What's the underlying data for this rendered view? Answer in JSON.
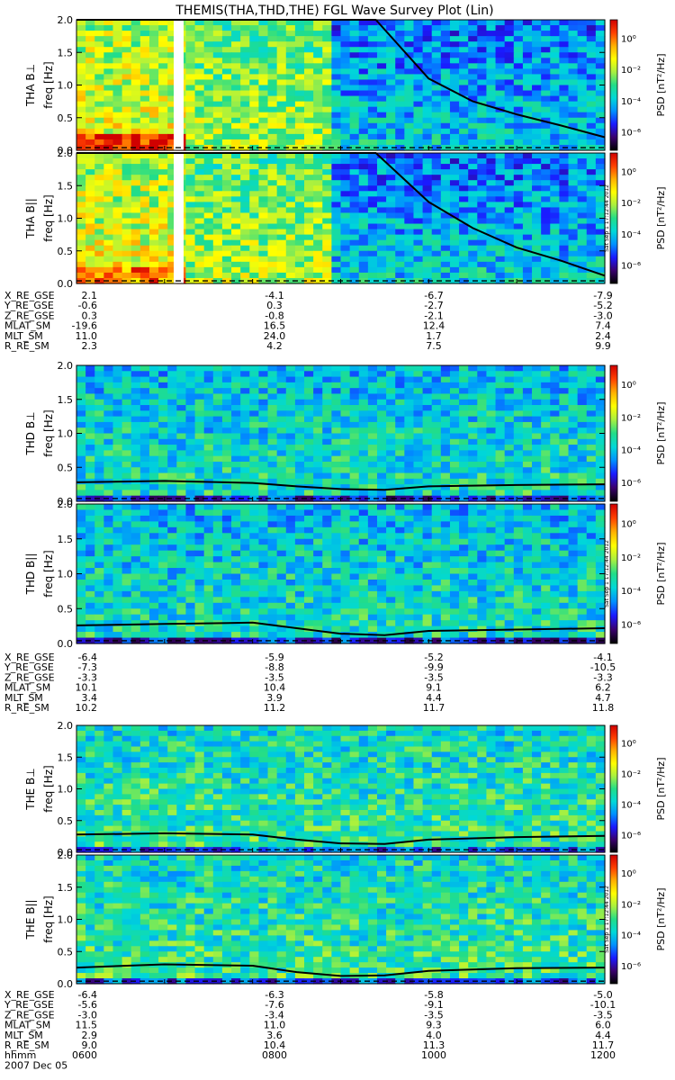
{
  "title": "THEMIS(THA,THD,THE) FGL Wave Survey Plot (Lin)",
  "colors": {
    "background": "#ffffff",
    "axis": "#000000",
    "trace": "#000000",
    "colorbar_stops": [
      "#000000",
      "#3a006e",
      "#1a1aff",
      "#0090ff",
      "#00d8d8",
      "#22dd88",
      "#a8f040",
      "#ffff00",
      "#ffb000",
      "#ff4000",
      "#d00000"
    ]
  },
  "colorbar": {
    "label": "PSD [nT²/Hz]",
    "tick_labels": [
      "10⁰",
      "10⁻²",
      "10⁻⁴",
      "10⁻⁶"
    ]
  },
  "freq_label": "freq [Hz]",
  "y_tick_labels": [
    "0.0",
    "0.5",
    "1.0",
    "1.5",
    "2.0"
  ],
  "stamp": "Sat Sep  1 17:12:44 2012",
  "probes": [
    {
      "id": "THA",
      "panels": [
        {
          "ylabel": "THA B⊥"
        },
        {
          "ylabel": "THA B||"
        }
      ],
      "ephemeris": [
        {
          "label": "X_RE_GSE",
          "values": [
            "2.1",
            "-4.1",
            "-6.7",
            "-7.9"
          ]
        },
        {
          "label": "Y_RE_GSE",
          "values": [
            "-0.6",
            "0.3",
            "-2.7",
            "-5.2"
          ]
        },
        {
          "label": "Z_RE_GSE",
          "values": [
            "0.3",
            "-0.8",
            "-2.1",
            "-3.0"
          ]
        },
        {
          "label": "MLAT_SM",
          "values": [
            "-19.6",
            "16.5",
            "12.4",
            "7.4"
          ]
        },
        {
          "label": "MLT_SM",
          "values": [
            "11.0",
            "24.0",
            "1.7",
            "2.4"
          ]
        },
        {
          "label": "R_RE_SM",
          "values": [
            "2.3",
            "4.2",
            "7.5",
            "9.9"
          ]
        }
      ]
    },
    {
      "id": "THD",
      "panels": [
        {
          "ylabel": "THD B⊥"
        },
        {
          "ylabel": "THD B||"
        }
      ],
      "ephemeris": [
        {
          "label": "X_RE_GSE",
          "values": [
            "-6.4",
            "-5.9",
            "-5.2",
            "-4.1"
          ]
        },
        {
          "label": "Y_RE_GSE",
          "values": [
            "-7.3",
            "-8.8",
            "-9.9",
            "-10.5"
          ]
        },
        {
          "label": "Z_RE_GSE",
          "values": [
            "-3.3",
            "-3.5",
            "-3.5",
            "-3.3"
          ]
        },
        {
          "label": "MLAT_SM",
          "values": [
            "10.1",
            "10.4",
            "9.1",
            "6.2"
          ]
        },
        {
          "label": "MLT_SM",
          "values": [
            "3.4",
            "3.9",
            "4.4",
            "4.7"
          ]
        },
        {
          "label": "R_RE_SM",
          "values": [
            "10.2",
            "11.2",
            "11.7",
            "11.8"
          ]
        }
      ]
    },
    {
      "id": "THE",
      "panels": [
        {
          "ylabel": "THE B⊥"
        },
        {
          "ylabel": "THE B||"
        }
      ],
      "ephemeris": [
        {
          "label": "X_RE_GSE",
          "values": [
            "-6.4",
            "-6.3",
            "-5.8",
            "-5.0"
          ]
        },
        {
          "label": "Y_RE_GSE",
          "values": [
            "-5.6",
            "-7.6",
            "-9.1",
            "-10.1"
          ]
        },
        {
          "label": "Z_RE_GSE",
          "values": [
            "-3.0",
            "-3.4",
            "-3.5",
            "-3.5"
          ]
        },
        {
          "label": "MLAT_SM",
          "values": [
            "11.5",
            "11.0",
            "9.3",
            "6.0"
          ]
        },
        {
          "label": "MLT_SM",
          "values": [
            "2.9",
            "3.6",
            "4.0",
            "4.4"
          ]
        },
        {
          "label": "R_RE_SM",
          "values": [
            "9.0",
            "10.4",
            "11.3",
            "11.7"
          ]
        }
      ]
    }
  ],
  "time_axis": {
    "label": "hhmm",
    "values": [
      "0600",
      "0800",
      "1000",
      "1200"
    ],
    "date": "2007 Dec 05"
  },
  "chart_data": {
    "type": "heatmap",
    "title": "THEMIS(THA,THD,THE) FGL Wave Survey Plot (Lin)",
    "ylabel": "freq [Hz]",
    "ylim": [
      0,
      2.0
    ],
    "xlim": [
      "0600",
      "1200"
    ],
    "x_tick_labels": [
      "0600",
      "0800",
      "1000",
      "1200"
    ],
    "color_scale": "log",
    "color_range": [
      1e-07,
      10
    ],
    "panels": [
      {
        "name": "THA B⊥",
        "fce_curve": {
          "x": [
            6.0,
            9.4,
            10.0,
            10.5,
            11.0,
            11.5,
            12.0
          ],
          "y": [
            2.0,
            2.0,
            1.1,
            0.75,
            0.55,
            0.38,
            0.2
          ]
        }
      },
      {
        "name": "THA B||",
        "fce_curve": {
          "x": [
            6.0,
            9.4,
            10.0,
            10.5,
            11.0,
            11.5,
            12.0
          ],
          "y": [
            2.0,
            2.0,
            1.25,
            0.85,
            0.55,
            0.35,
            0.12
          ]
        }
      },
      {
        "name": "THD B⊥",
        "fce_curve": {
          "x": [
            6.0,
            7.0,
            8.0,
            8.5,
            9.0,
            9.5,
            10.0,
            11.0,
            12.0
          ],
          "y": [
            0.28,
            0.3,
            0.27,
            0.22,
            0.18,
            0.17,
            0.22,
            0.24,
            0.25
          ]
        }
      },
      {
        "name": "THD B||",
        "fce_curve": {
          "x": [
            6.0,
            7.0,
            8.0,
            8.5,
            9.0,
            9.5,
            10.0,
            11.0,
            12.0
          ],
          "y": [
            0.26,
            0.28,
            0.3,
            0.22,
            0.14,
            0.12,
            0.18,
            0.2,
            0.22
          ]
        }
      },
      {
        "name": "THE B⊥",
        "fce_curve": {
          "x": [
            6.0,
            7.0,
            8.0,
            8.5,
            9.0,
            9.5,
            10.0,
            11.0,
            12.0
          ],
          "y": [
            0.28,
            0.3,
            0.28,
            0.2,
            0.14,
            0.13,
            0.2,
            0.24,
            0.26
          ]
        }
      },
      {
        "name": "THE B||",
        "fce_curve": {
          "x": [
            6.0,
            7.0,
            8.0,
            8.5,
            9.0,
            9.5,
            10.0,
            11.0,
            12.0
          ],
          "y": [
            0.25,
            0.3,
            0.28,
            0.18,
            0.12,
            0.13,
            0.2,
            0.24,
            0.25
          ]
        }
      }
    ]
  }
}
